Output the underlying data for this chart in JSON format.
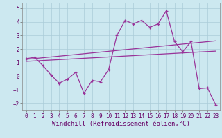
{
  "xlabel": "Windchill (Refroidissement éolien,°C)",
  "background_color": "#cce8f0",
  "grid_color": "#aaccd8",
  "line_color": "#993399",
  "xlim": [
    -0.5,
    23.5
  ],
  "ylim": [
    -2.5,
    5.4
  ],
  "xticks": [
    0,
    1,
    2,
    3,
    4,
    5,
    6,
    7,
    8,
    9,
    10,
    11,
    12,
    13,
    14,
    15,
    16,
    17,
    18,
    19,
    20,
    21,
    22,
    23
  ],
  "yticks": [
    -2,
    -1,
    0,
    1,
    2,
    3,
    4,
    5
  ],
  "data_x": [
    0,
    1,
    2,
    3,
    4,
    5,
    6,
    7,
    8,
    9,
    10,
    11,
    12,
    13,
    14,
    15,
    16,
    17,
    18,
    19,
    20,
    21,
    22,
    23
  ],
  "data_y": [
    1.3,
    1.4,
    0.8,
    0.1,
    -0.5,
    -0.2,
    0.3,
    -1.25,
    -0.3,
    -0.4,
    0.5,
    3.0,
    4.1,
    3.85,
    4.1,
    3.6,
    3.85,
    4.8,
    2.55,
    1.8,
    2.55,
    -0.9,
    -0.85,
    -2.1
  ],
  "trend1_x": [
    0,
    23
  ],
  "trend1_y": [
    1.25,
    2.6
  ],
  "trend2_x": [
    0,
    23
  ],
  "trend2_y": [
    1.1,
    1.85
  ],
  "xlabel_color": "#660066",
  "xlabel_fontsize": 6.5,
  "tick_fontsize": 5.5,
  "line_width": 0.9,
  "marker_size": 3.0
}
